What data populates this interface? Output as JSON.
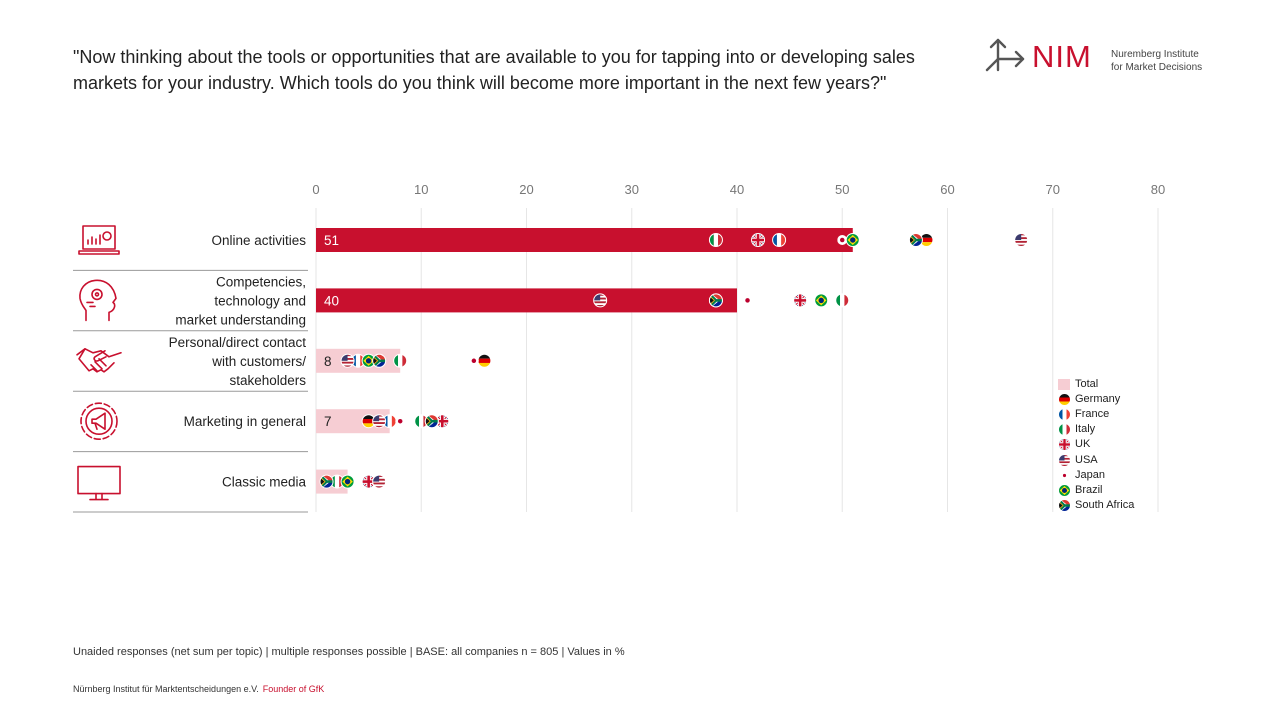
{
  "question": "\"Now thinking about the tools or opportunities that are available to you for tapping into or developing sales markets for your industry. Which tools do you think will become more important in the next few years?\"",
  "logo": {
    "word": "NIM",
    "subtitle": "Nuremberg Institute\nfor Market Decisions",
    "color": "#c8102e"
  },
  "footnote": "Unaided responses  (net sum per topic) | multiple responses  possible  | BASE:  all companies n = 805 | Values  in %",
  "footer": {
    "org": "Nürnberg Institut für Marktentscheidungen e.V.",
    "founder": "Founder of GfK"
  },
  "colors": {
    "accent": "#c8102e",
    "light_bar": "#f6cdd3",
    "grid": "#e6e6e6"
  },
  "chart_data": {
    "type": "bar",
    "orientation": "horizontal",
    "xlim": [
      0,
      80
    ],
    "xticks": [
      0,
      10,
      20,
      30,
      40,
      50,
      60,
      70,
      80
    ],
    "grid": "vertical",
    "legend_position": "right",
    "categories": [
      {
        "label": "Online activities",
        "icon": "laptop-chart-icon"
      },
      {
        "label": "Competencies,\ntechnology and\nmarket understanding",
        "icon": "head-gears-icon"
      },
      {
        "label": "Personal/direct contact\nwith customers/\nstakeholders",
        "icon": "handshake-icon"
      },
      {
        "label": "Marketing in general",
        "icon": "megaphone-gear-icon"
      },
      {
        "label": "Classic media",
        "icon": "monitor-icon"
      }
    ],
    "series": [
      {
        "name": "Total",
        "type": "bar",
        "values": [
          51,
          40,
          8,
          7,
          3
        ],
        "data_labels": [
          "51",
          "40",
          "8",
          "7",
          ""
        ]
      },
      {
        "name": "Germany",
        "type": "marker",
        "flag": "germany",
        "values": [
          58,
          38,
          16,
          5,
          3
        ]
      },
      {
        "name": "France",
        "type": "marker",
        "flag": "france",
        "values": [
          44,
          46,
          4,
          7,
          5
        ]
      },
      {
        "name": "Italy",
        "type": "marker",
        "flag": "italy",
        "values": [
          38,
          50,
          8,
          10,
          2
        ]
      },
      {
        "name": "UK",
        "type": "marker",
        "flag": "uk",
        "values": [
          42,
          46,
          6,
          12,
          5
        ]
      },
      {
        "name": "USA",
        "type": "marker",
        "flag": "usa",
        "values": [
          67,
          27,
          3,
          6,
          6
        ]
      },
      {
        "name": "Japan",
        "type": "marker",
        "flag": "japan",
        "values": [
          50,
          41,
          15,
          8,
          3
        ]
      },
      {
        "name": "Brazil",
        "type": "marker",
        "flag": "brazil",
        "values": [
          51,
          48,
          5,
          11,
          3
        ]
      },
      {
        "name": "South Africa",
        "type": "marker",
        "flag": "south-africa",
        "values": [
          57,
          38,
          6,
          11,
          1
        ]
      }
    ]
  }
}
